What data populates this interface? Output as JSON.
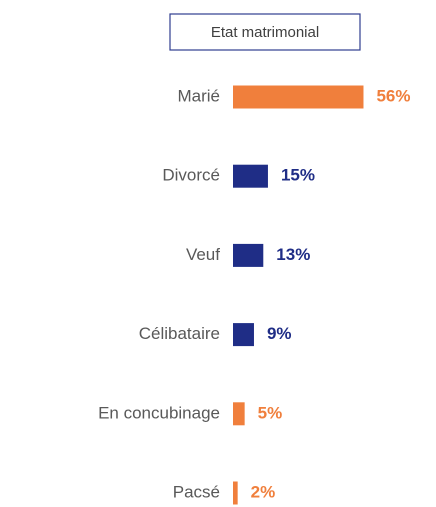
{
  "chart_data": {
    "type": "bar",
    "orientation": "horizontal",
    "title": "Etat matrimonial",
    "categories": [
      "Marié",
      "Divorcé",
      "Veuf",
      "Célibataire",
      "En concubinage",
      "Pacsé"
    ],
    "values": [
      56,
      15,
      13,
      9,
      5,
      2
    ],
    "value_labels": [
      "56%",
      "15%",
      "13%",
      "9%",
      "5%",
      "2%"
    ],
    "colors": [
      "#f07f3c",
      "#1f2d86",
      "#1f2d86",
      "#1f2d86",
      "#f07f3c",
      "#f07f3c"
    ]
  }
}
